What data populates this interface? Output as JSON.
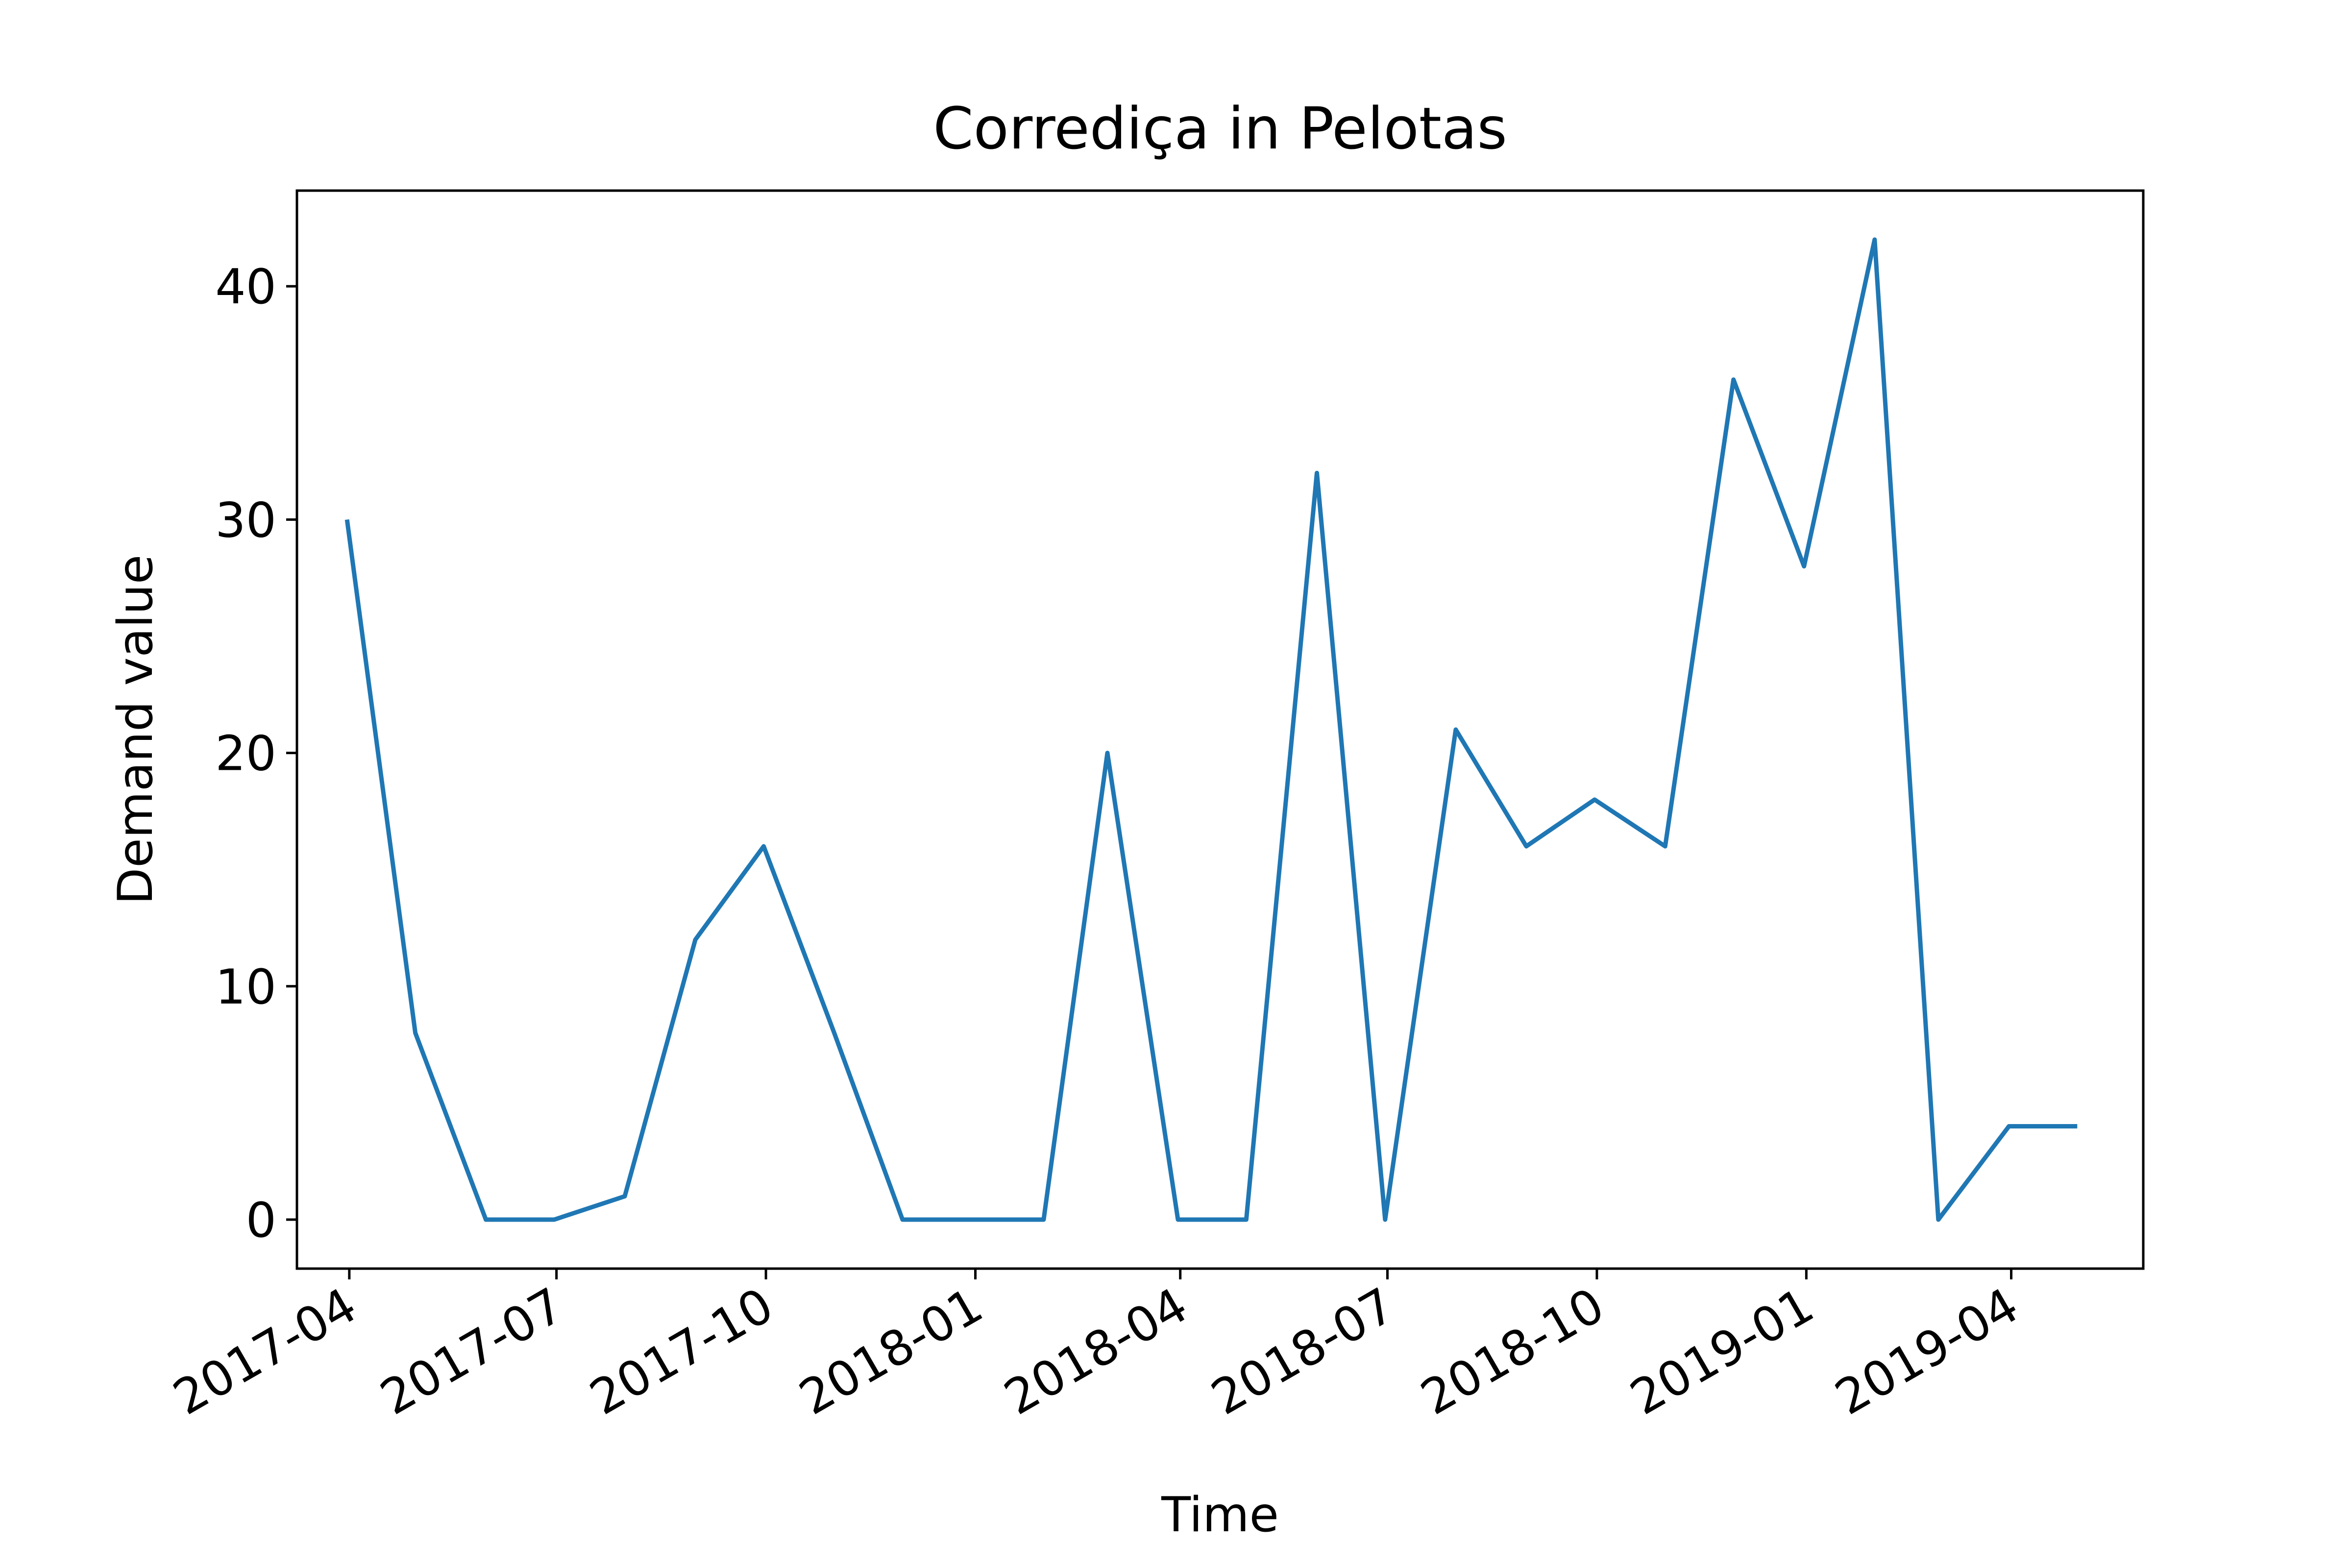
{
  "chart_data": {
    "type": "line",
    "title": "Corrediça in Pelotas",
    "xlabel": "Time",
    "ylabel": "Demand value",
    "xlim": [
      "2017-03-09",
      "2019-05-29"
    ],
    "ylim": [
      -2.1,
      44.1
    ],
    "x_ticks": [
      "2017-04",
      "2017-07",
      "2017-10",
      "2018-01",
      "2018-04",
      "2018-07",
      "2018-10",
      "2019-01",
      "2019-04"
    ],
    "y_ticks": [
      0,
      10,
      20,
      30,
      40
    ],
    "grid": false,
    "legend": "none",
    "colors": {
      "series": "#1f77b4",
      "axes": "#000000",
      "background": "#ffffff"
    },
    "series": [
      {
        "x": [
          "2017-03-31",
          "2017-04-30",
          "2017-05-31",
          "2017-06-30",
          "2017-07-31",
          "2017-08-31",
          "2017-09-30",
          "2017-10-31",
          "2017-11-30",
          "2017-12-31",
          "2018-01-31",
          "2018-02-28",
          "2018-03-31",
          "2018-04-30",
          "2018-05-31",
          "2018-06-30",
          "2018-07-31",
          "2018-08-31",
          "2018-09-30",
          "2018-10-31",
          "2018-11-30",
          "2018-12-31",
          "2019-01-31",
          "2019-02-28",
          "2019-03-31",
          "2019-04-30"
        ],
        "values": [
          30,
          8,
          0,
          0,
          1,
          12,
          16,
          8,
          0,
          0,
          0,
          20,
          0,
          0,
          32,
          0,
          21,
          16,
          18,
          16,
          36,
          28,
          42,
          0,
          4,
          4
        ]
      }
    ]
  }
}
